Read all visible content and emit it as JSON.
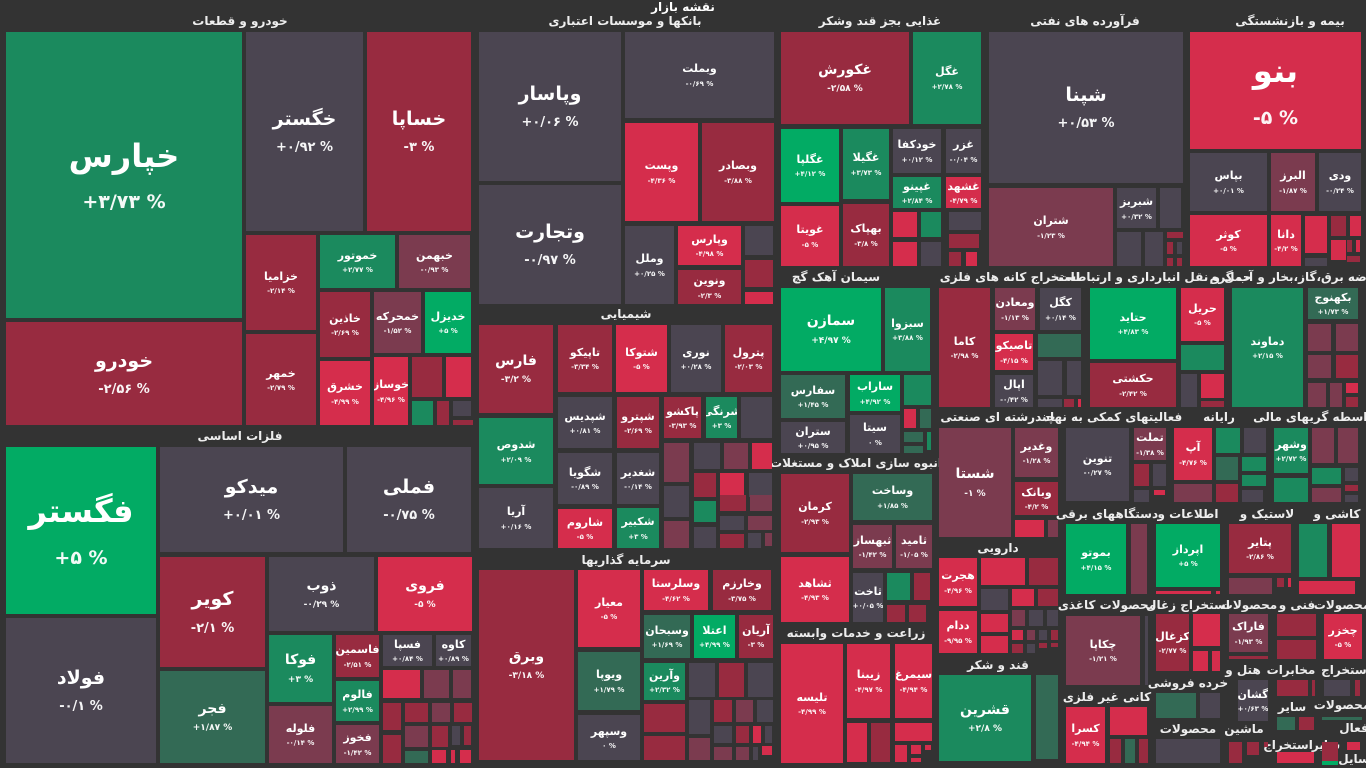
{
  "header": {
    "title": "نقشه بازار"
  },
  "palette": {
    "g": "#1b8a5e",
    "G": "#02ab64",
    "n": "#4b4551",
    "d": "#982b40",
    "r": "#d52d4c",
    "m": "#7b3b4f",
    "k": "#336a55"
  },
  "sectors": [
    "خودرو و قطعات",
    "بانکها و موسسات اعتباری",
    "غذایی بجز قند وشکر",
    "فرآورده های نفتی",
    "بیمه و بازنشستگی",
    "فلزات اساسی",
    "شیمیایی",
    "سرمایه گذاریها",
    "سیمان آهک گچ",
    "انبوه سازی املاک و مستغلات",
    "زراعت و خدمات وابسته",
    "استخراج کانه های فلزی",
    "حمل و نقل انبارداری و ارتباطات",
    "عرضه برق،گاز،بخار و آب گرم",
    "چندرشته ای صنعتی",
    "دارویی",
    "قند و شکر",
    "فعالیتهای کمکی به نهاد",
    "رایانه",
    "واسطه گریهای مالی",
    "دستگاههای برقی",
    "اطلاعات و",
    "لاستیک و",
    "کاشی و",
    "محصولات کاغذی",
    "استخراج زغال",
    "محصولات",
    "فنی و",
    "محصولات",
    "هتل و",
    "مخابرات",
    "استخراج",
    "کانی غیر فلزی",
    "خرده فروشی",
    "محصولات",
    "سایر",
    "محصولات",
    "ماشین",
    "استخراج",
    "سایر",
    "فعال",
    "سایل"
  ],
  "tiles": [
    {
      "sym": "خپارس",
      "chg": "+۳/۷۳ %",
      "tone": "g"
    },
    {
      "sym": "خودرو",
      "chg": "-۲/۵۶ %",
      "tone": "d"
    },
    {
      "sym": "خگستر",
      "chg": "+۰/۹۲ %",
      "tone": "n"
    },
    {
      "sym": "خساپا",
      "chg": "-۳ %",
      "tone": "d"
    },
    {
      "sym": "خزامیا",
      "chg": "-۲/۱۴ %",
      "tone": "d"
    },
    {
      "sym": "خمهر",
      "chg": "-۲/۷۹ %",
      "tone": "d"
    },
    {
      "sym": "خموتور",
      "chg": "+۲/۷۷ %",
      "tone": "g"
    },
    {
      "sym": "خبهمن",
      "chg": "-۰/۹۳ %",
      "tone": "m"
    },
    {
      "sym": "خاذین",
      "chg": "-۲/۶۹ %",
      "tone": "d"
    },
    {
      "sym": "خمحرکه",
      "chg": "-۱/۵۲ %",
      "tone": "m"
    },
    {
      "sym": "خدیزل",
      "chg": "+۵ %",
      "tone": "G"
    },
    {
      "sym": "خشرق",
      "chg": "-۴/۹۹ %",
      "tone": "r"
    },
    {
      "sym": "خوساز",
      "chg": "-۴/۹۶ %",
      "tone": "r"
    },
    {
      "sym": "فگستر",
      "chg": "+۵ %",
      "tone": "G"
    },
    {
      "sym": "فولاد",
      "chg": "-۰/۱ %",
      "tone": "n"
    },
    {
      "sym": "میدکو",
      "chg": "+۰/۰۱ %",
      "tone": "n"
    },
    {
      "sym": "فملی",
      "chg": "-۰/۷۵ %",
      "tone": "n"
    },
    {
      "sym": "کویر",
      "chg": "-۲/۱ %",
      "tone": "d"
    },
    {
      "sym": "فجر",
      "chg": "+۱/۸۷ %",
      "tone": "k"
    },
    {
      "sym": "ذوب",
      "chg": "-۰/۲۹ %",
      "tone": "n"
    },
    {
      "sym": "فروی",
      "chg": "-۵ %",
      "tone": "r"
    },
    {
      "sym": "فوکا",
      "chg": "+۳ %",
      "tone": "g"
    },
    {
      "sym": "فلوله",
      "chg": "-۰/۱۴ %",
      "tone": "m"
    },
    {
      "sym": "فاسمین",
      "chg": "-۲/۵۱ %",
      "tone": "d"
    },
    {
      "sym": "فالوم",
      "chg": "+۲/۹۹ %",
      "tone": "g"
    },
    {
      "sym": "فخوز",
      "chg": "-۱/۴۲ %",
      "tone": "m"
    },
    {
      "sym": "فسپا",
      "chg": "+۰/۸۴ %",
      "tone": "n"
    },
    {
      "sym": "کاوه",
      "chg": "+۰/۸۹ %",
      "tone": "n"
    },
    {
      "sym": "وپاسار",
      "chg": "+۰/۰۶ %",
      "tone": "n"
    },
    {
      "sym": "وتجارت",
      "chg": "-۰/۹۷ %",
      "tone": "n"
    },
    {
      "sym": "وبملت",
      "chg": "-۰/۶۹ %",
      "tone": "n"
    },
    {
      "sym": "وپست",
      "chg": "-۴/۳۶ %",
      "tone": "r"
    },
    {
      "sym": "وبصادر",
      "chg": "-۳/۸۸ %",
      "tone": "d"
    },
    {
      "sym": "وملل",
      "chg": "+۰/۲۵ %",
      "tone": "n"
    },
    {
      "sym": "وپارس",
      "chg": "-۴/۹۸ %",
      "tone": "r"
    },
    {
      "sym": "ونوین",
      "chg": "-۲/۳ %",
      "tone": "d"
    },
    {
      "sym": "غکورش",
      "chg": "-۲/۵۸ %",
      "tone": "d"
    },
    {
      "sym": "غگل",
      "chg": "+۲/۷۸ %",
      "tone": "g"
    },
    {
      "sym": "غگلپا",
      "chg": "+۴/۱۲ %",
      "tone": "G"
    },
    {
      "sym": "غگیلا",
      "chg": "+۳/۷۳ %",
      "tone": "g"
    },
    {
      "sym": "خودکفا",
      "chg": "+۰/۱۲ %",
      "tone": "n"
    },
    {
      "sym": "غزر",
      "chg": "-۰/۰۴ %",
      "tone": "n"
    },
    {
      "sym": "غپینو",
      "chg": "+۲/۸۴ %",
      "tone": "g"
    },
    {
      "sym": "غشهد",
      "chg": "-۴/۷۹ %",
      "tone": "r"
    },
    {
      "sym": "غویتا",
      "chg": "-۵ %",
      "tone": "r"
    },
    {
      "sym": "بهپاک",
      "chg": "-۳/۸ %",
      "tone": "d"
    },
    {
      "sym": "شپنا",
      "chg": "+۰/۵۳ %",
      "tone": "n"
    },
    {
      "sym": "شتران",
      "chg": "-۱/۲۳ %",
      "tone": "m"
    },
    {
      "sym": "شبریز",
      "chg": "+۰/۳۲ %",
      "tone": "n"
    },
    {
      "sym": "بنو",
      "chg": "-۵ %",
      "tone": "r"
    },
    {
      "sym": "بپاس",
      "chg": "+۰/۰۱ %",
      "tone": "n"
    },
    {
      "sym": "البرز",
      "chg": "-۱/۸۷ %",
      "tone": "m"
    },
    {
      "sym": "ودی",
      "chg": "-۰/۲۴ %",
      "tone": "n"
    },
    {
      "sym": "کوثر",
      "chg": "-۵ %",
      "tone": "r"
    },
    {
      "sym": "دانا",
      "chg": "-۴/۲ %",
      "tone": "r"
    },
    {
      "sym": "کاما",
      "chg": "-۲/۹۸ %",
      "tone": "d"
    },
    {
      "sym": "ومعادن",
      "chg": "-۱/۱۳ %",
      "tone": "m"
    },
    {
      "sym": "کگل",
      "chg": "+۰/۱۴ %",
      "tone": "n"
    },
    {
      "sym": "تاصیکو",
      "chg": "-۴/۱۵ %",
      "tone": "r"
    },
    {
      "sym": "اپال",
      "chg": "-۰/۴۲ %",
      "tone": "n"
    },
    {
      "sym": "حتاید",
      "chg": "+۴/۸۳ %",
      "tone": "G"
    },
    {
      "sym": "حریل",
      "chg": "-۵ %",
      "tone": "r"
    },
    {
      "sym": "حکشتی",
      "chg": "-۲/۴۲ %",
      "tone": "d"
    },
    {
      "sym": "دماوند",
      "chg": "+۲/۱۵ %",
      "tone": "g"
    },
    {
      "sym": "بکهنوج",
      "chg": "+۱/۷۳ %",
      "tone": "k"
    },
    {
      "sym": "سمازن",
      "chg": "+۴/۹۷ %",
      "tone": "G"
    },
    {
      "sym": "سبزوا",
      "chg": "+۳/۸۸ %",
      "tone": "g"
    },
    {
      "sym": "سفارس",
      "chg": "+۱/۴۵ %",
      "tone": "k"
    },
    {
      "sym": "ستران",
      "chg": "+۰/۹۵ %",
      "tone": "n"
    },
    {
      "sym": "ساراب",
      "chg": "+۴/۹۲ %",
      "tone": "G"
    },
    {
      "sym": "سیتا",
      "chg": "۰ %",
      "tone": "n"
    },
    {
      "sym": "کرمان",
      "chg": "-۲/۹۳ %",
      "tone": "d"
    },
    {
      "sym": "وساخت",
      "chg": "+۱/۸۵ %",
      "tone": "k"
    },
    {
      "sym": "ثبهساز",
      "chg": "-۱/۴۲ %",
      "tone": "m"
    },
    {
      "sym": "ثامید",
      "chg": "-۱/۰۵ %",
      "tone": "m"
    },
    {
      "sym": "ثشاهد",
      "chg": "-۴/۹۳ %",
      "tone": "r"
    },
    {
      "sym": "ثاخت",
      "chg": "+۰/۰۵ %",
      "tone": "n"
    },
    {
      "sym": "تلیسه",
      "chg": "-۴/۹۹ %",
      "tone": "r"
    },
    {
      "sym": "زیبنا",
      "chg": "-۴/۹۷ %",
      "tone": "r"
    },
    {
      "sym": "سیمرغ",
      "chg": "-۴/۹۴ %",
      "tone": "r"
    },
    {
      "sym": "شستا",
      "chg": "-۱ %",
      "tone": "m"
    },
    {
      "sym": "وغدیر",
      "chg": "-۱/۲۸ %",
      "tone": "m"
    },
    {
      "sym": "وبانک",
      "chg": "-۴/۲ %",
      "tone": "d"
    },
    {
      "sym": "هجرت",
      "chg": "-۴/۹۶ %",
      "tone": "r"
    },
    {
      "sym": "ددام",
      "chg": "-۹/۹۵ %",
      "tone": "r"
    },
    {
      "sym": "قشرین",
      "chg": "+۲/۸ %",
      "tone": "g"
    },
    {
      "sym": "تنوین",
      "chg": "-۰/۲۷ %",
      "tone": "n"
    },
    {
      "sym": "تملت",
      "chg": "-۱/۳۸ %",
      "tone": "m"
    },
    {
      "sym": "آپ",
      "chg": "-۴/۷۶ %",
      "tone": "r"
    },
    {
      "sym": "وشهر",
      "chg": "+۲/۷۲ %",
      "tone": "g"
    },
    {
      "sym": "بموتو",
      "chg": "+۴/۱۵ %",
      "tone": "G"
    },
    {
      "sym": "اپرداز",
      "chg": "+۵ %",
      "tone": "G"
    },
    {
      "sym": "پتایر",
      "chg": "-۲/۸۶ %",
      "tone": "d"
    },
    {
      "sym": "چکاپا",
      "chg": "-۱/۲۱ %",
      "tone": "m"
    },
    {
      "sym": "کزغال",
      "chg": "-۲/۷۷ %",
      "tone": "d"
    },
    {
      "sym": "فاراک",
      "chg": "-۱/۹۳ %",
      "tone": "m"
    },
    {
      "sym": "چخزر",
      "chg": "-۵ %",
      "tone": "r"
    },
    {
      "sym": "گشان",
      "chg": "+۰/۶۳ %",
      "tone": "n"
    },
    {
      "sym": "کسرا",
      "chg": "-۴/۹۴ %",
      "tone": "r"
    },
    {
      "sym": "فارس",
      "chg": "-۳/۲ %",
      "tone": "d"
    },
    {
      "sym": "شدوص",
      "chg": "+۲/۰۹ %",
      "tone": "g"
    },
    {
      "sym": "آریا",
      "chg": "+۰/۱۶ %",
      "tone": "n"
    },
    {
      "sym": "تاپیکو",
      "chg": "-۳/۳۴ %",
      "tone": "d"
    },
    {
      "sym": "شتوکا",
      "chg": "-۵ %",
      "tone": "r"
    },
    {
      "sym": "نوری",
      "chg": "+۰/۲۸ %",
      "tone": "n"
    },
    {
      "sym": "پترول",
      "chg": "-۲/۰۳ %",
      "tone": "d"
    },
    {
      "sym": "شپدیس",
      "chg": "+۰/۸۱ %",
      "tone": "n"
    },
    {
      "sym": "شپترو",
      "chg": "-۲/۶۹ %",
      "tone": "d"
    },
    {
      "sym": "پاکشو",
      "chg": "-۳/۹۳ %",
      "tone": "d"
    },
    {
      "sym": "شرنگی",
      "chg": "+۳ %",
      "tone": "g"
    },
    {
      "sym": "شگویا",
      "chg": "-۰/۸۹ %",
      "tone": "n"
    },
    {
      "sym": "شغدیر",
      "chg": "-۰/۱۴ %",
      "tone": "n"
    },
    {
      "sym": "شاروم",
      "chg": "-۵ %",
      "tone": "r"
    },
    {
      "sym": "شکبیر",
      "chg": "+۳ %",
      "tone": "g"
    },
    {
      "sym": "وبرق",
      "chg": "-۳/۱۸ %",
      "tone": "d"
    },
    {
      "sym": "معیار",
      "chg": "-۵ %",
      "tone": "r"
    },
    {
      "sym": "ویوپا",
      "chg": "+۱/۷۹ %",
      "tone": "k"
    },
    {
      "sym": "وسپهر",
      "chg": "۰ %",
      "tone": "n"
    },
    {
      "sym": "وسلرستا",
      "chg": "-۴/۶۲ %",
      "tone": "r"
    },
    {
      "sym": "وخارزم",
      "chg": "-۳/۷۵ %",
      "tone": "d"
    },
    {
      "sym": "وسبحان",
      "chg": "+۱/۶۹ %",
      "tone": "k"
    },
    {
      "sym": "اعتلا",
      "chg": "+۴/۹۹ %",
      "tone": "G"
    },
    {
      "sym": "آریان",
      "chg": "-۳ %",
      "tone": "d"
    },
    {
      "sym": "وآرین",
      "chg": "+۲/۳۲ %",
      "tone": "g"
    }
  ]
}
